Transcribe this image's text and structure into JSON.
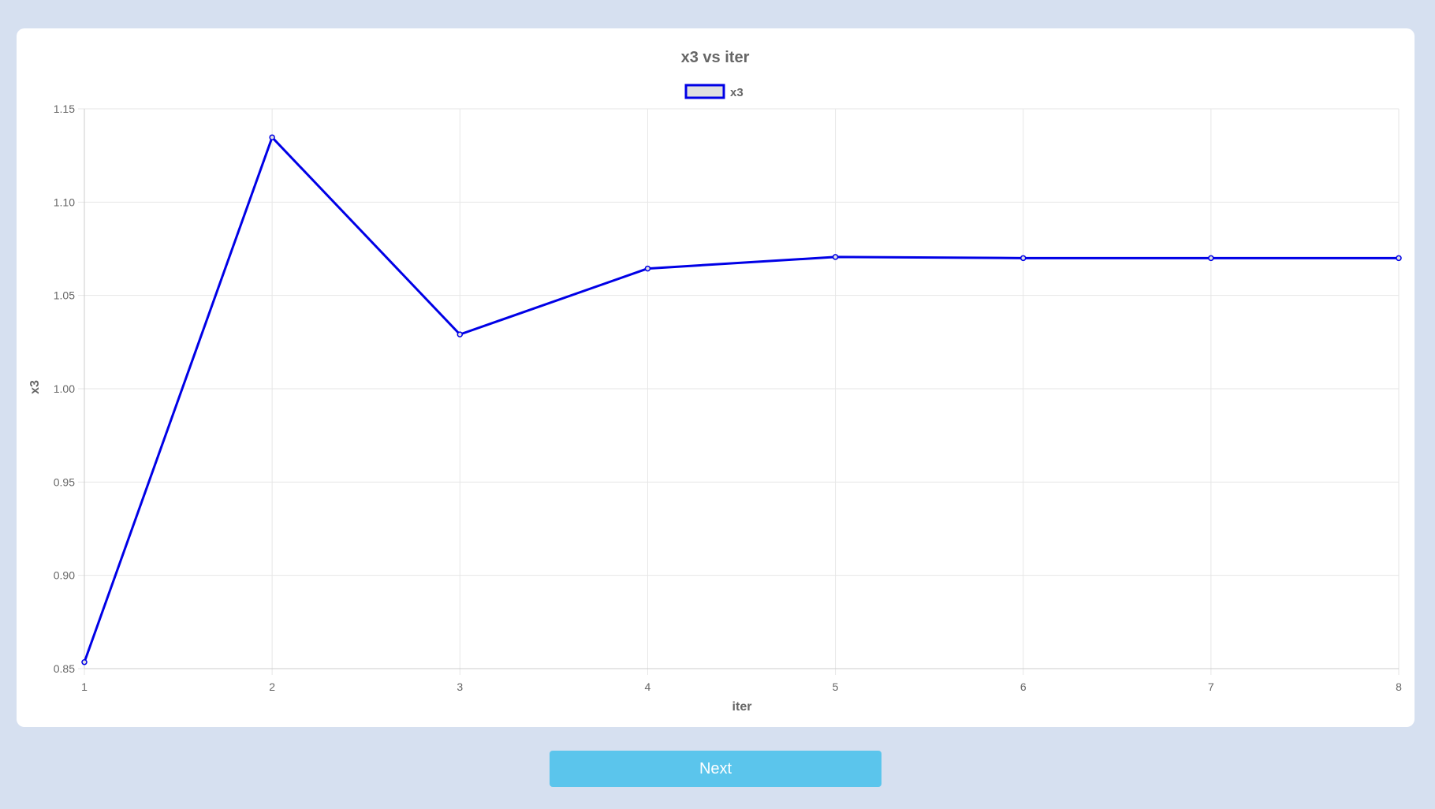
{
  "chart_data": {
    "type": "line",
    "title": "x3 vs iter",
    "xlabel": "iter",
    "ylabel": "x3",
    "x": [
      1,
      2,
      3,
      4,
      5,
      6,
      7,
      8
    ],
    "series": [
      {
        "name": "x3",
        "values": [
          0.8535,
          1.1347,
          1.0291,
          1.0644,
          1.0706,
          1.07,
          1.07,
          1.07
        ]
      }
    ],
    "xlim": [
      1,
      8
    ],
    "ylim": [
      0.85,
      1.15
    ],
    "yticks": [
      "0.85",
      "0.90",
      "0.95",
      "1.00",
      "1.05",
      "1.10",
      "1.15"
    ],
    "xticks": [
      "1",
      "2",
      "3",
      "4",
      "5",
      "6",
      "7",
      "8"
    ],
    "grid": true,
    "legend_position": "top-center",
    "line_color": "#0000e6",
    "legend_fill": "#e0e0e0",
    "grid_color": "#e6e6e6",
    "text_color": "#666666"
  },
  "buttons": {
    "next_label": "Next"
  }
}
